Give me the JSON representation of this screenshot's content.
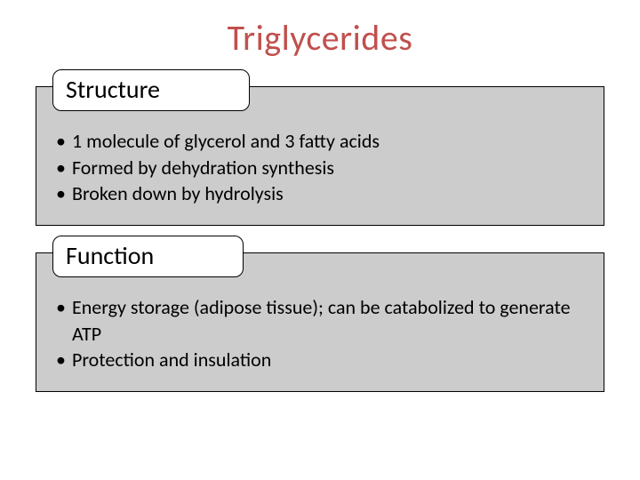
{
  "title": {
    "text": "Triglycerides",
    "color": "#c0504d",
    "fontsize": 40
  },
  "panels": [
    {
      "label": "Structure",
      "label_fontsize": 28,
      "label_color": "#000000",
      "bg_color": "#cccccc",
      "border_color": "#000000",
      "bullet_fontsize": 22,
      "bullet_color": "#000000",
      "bullets": [
        "1 molecule of glycerol and 3 fatty acids",
        "Formed by dehydration synthesis",
        "Broken down by hydrolysis"
      ]
    },
    {
      "label": "Function",
      "label_fontsize": 28,
      "label_color": "#000000",
      "bg_color": "#cccccc",
      "border_color": "#000000",
      "bullet_fontsize": 22,
      "bullet_color": "#000000",
      "bullets": [
        "Energy storage (adipose tissue); can be catabolized to generate ATP",
        "Protection and insulation"
      ]
    }
  ],
  "layout": {
    "slide_width": 720,
    "slide_height": 540,
    "background_color": "#ffffff",
    "panel_radius": 10
  }
}
